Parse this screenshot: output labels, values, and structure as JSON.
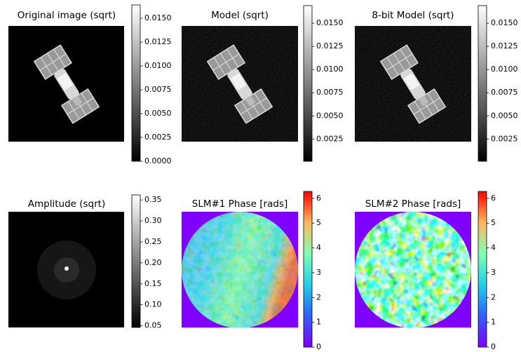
{
  "chart_data": [
    {
      "type": "image",
      "title": "Original image (sqrt)",
      "colormap": "gray",
      "clim": [
        0,
        0.0164
      ],
      "cticks": [
        {
          "value": 0,
          "label": "0.0000"
        },
        {
          "value": 0.0025,
          "label": "0.0025"
        },
        {
          "value": 0.005,
          "label": "0.0050"
        },
        {
          "value": 0.0075,
          "label": "0.0075"
        },
        {
          "value": 0.01,
          "label": "0.0100"
        },
        {
          "value": 0.0125,
          "label": "0.0125"
        },
        {
          "value": 0.015,
          "label": "0.0150"
        }
      ]
    },
    {
      "type": "image",
      "title": "Model (sqrt)",
      "colormap": "gray",
      "clim": [
        0.0001,
        0.0169
      ],
      "cticks": [
        {
          "value": 0.0025,
          "label": "0.0025"
        },
        {
          "value": 0.005,
          "label": "0.0050"
        },
        {
          "value": 0.0075,
          "label": "0.0075"
        },
        {
          "value": 0.01,
          "label": "0.0100"
        },
        {
          "value": 0.0125,
          "label": "0.0125"
        },
        {
          "value": 0.015,
          "label": "0.0150"
        }
      ]
    },
    {
      "type": "image",
      "title": "8-bit Model (sqrt)",
      "colormap": "gray",
      "clim": [
        0.0001,
        0.0169
      ],
      "cticks": [
        {
          "value": 0.0025,
          "label": "0.0025"
        },
        {
          "value": 0.005,
          "label": "0.0050"
        },
        {
          "value": 0.0075,
          "label": "0.0075"
        },
        {
          "value": 0.01,
          "label": "0.0100"
        },
        {
          "value": 0.0125,
          "label": "0.0125"
        },
        {
          "value": 0.015,
          "label": "0.0150"
        }
      ]
    },
    {
      "type": "image",
      "title": "Amplitude (sqrt)",
      "colormap": "gray",
      "clim": [
        0.046,
        0.362
      ],
      "cticks": [
        0.05,
        {
          "value": 0.1,
          "label": "0.10"
        },
        0.15,
        {
          "value": 0.2,
          "label": "0.20"
        },
        0.25,
        {
          "value": 0.3,
          "label": "0.30"
        },
        0.35
      ]
    },
    {
      "type": "image",
      "title": "SLM#1 Phase [rads]",
      "colormap": "rainbow",
      "clim": [
        0,
        6.28
      ],
      "cticks": [
        0,
        1,
        2,
        3,
        4,
        5,
        6
      ]
    },
    {
      "type": "image",
      "title": "SLM#2 Phase [rads]",
      "colormap": "rainbow",
      "clim": [
        0,
        6.28
      ],
      "cticks": [
        0,
        1,
        2,
        3,
        4,
        5,
        6
      ]
    }
  ]
}
